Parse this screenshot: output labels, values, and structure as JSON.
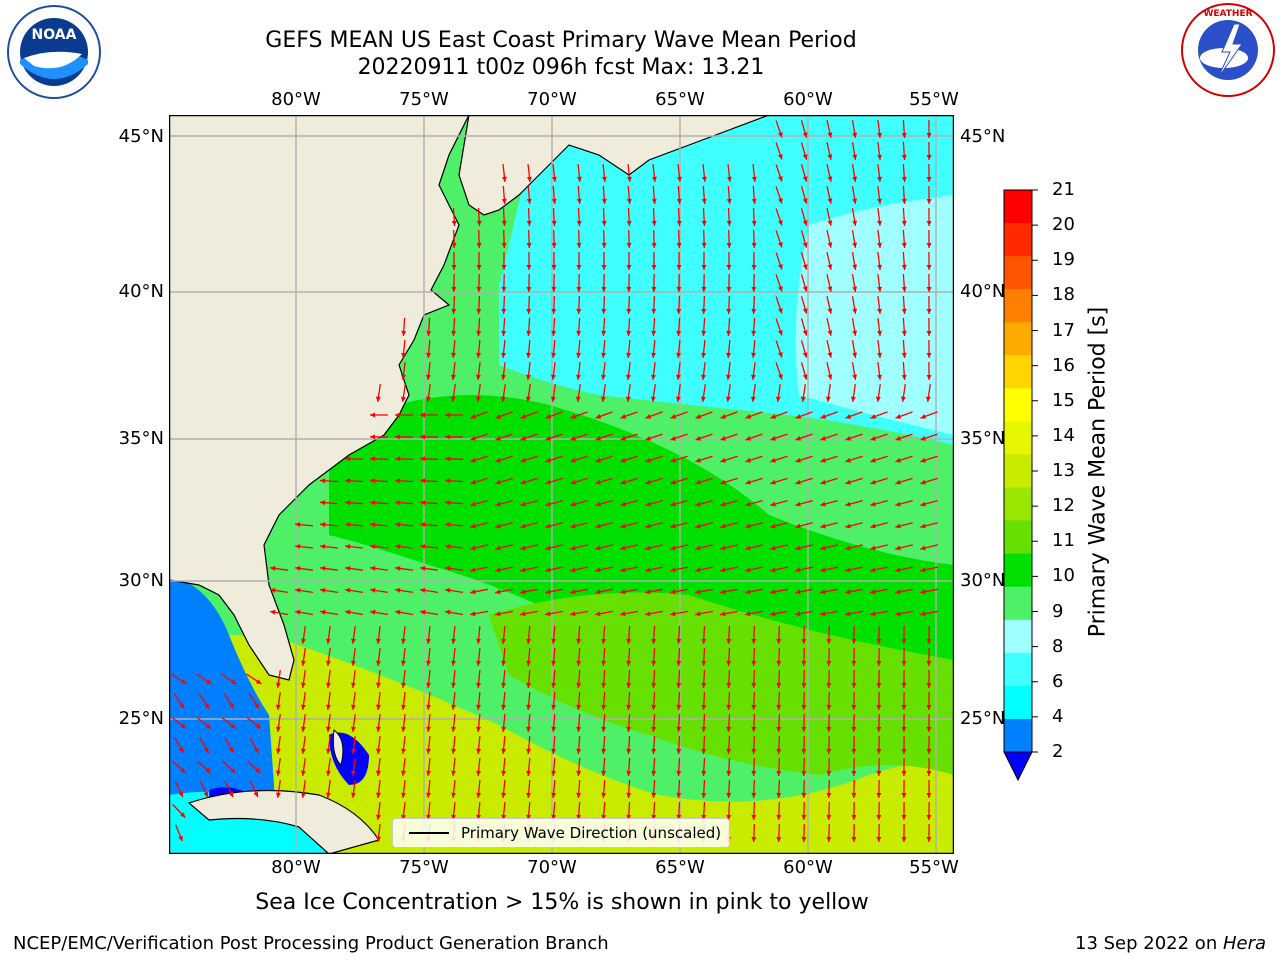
{
  "title": {
    "line1": "GEFS MEAN US East Coast Primary Wave Mean Period",
    "line2": "20220911 t00z 096h fcst   Max: 13.21"
  },
  "map": {
    "lon_ticks": [
      "80°W",
      "75°W",
      "70°W",
      "65°W",
      "60°W",
      "55°W"
    ],
    "lat_ticks": [
      "45°N",
      "40°N",
      "35°N",
      "30°N",
      "25°N"
    ],
    "extent": {
      "lon": [
        -85,
        -55
      ],
      "lat": [
        20.5,
        46
      ]
    },
    "legend_label": "Primary Wave Direction (unscaled)",
    "arrow_color": "#ff0000"
  },
  "colorbar": {
    "label": "Primary Wave Mean Period [s]",
    "ticks": [
      "21",
      "20",
      "19",
      "18",
      "17",
      "16",
      "15",
      "14",
      "13",
      "12",
      "11",
      "10",
      "9",
      "8",
      "6",
      "4",
      "2"
    ],
    "colors": [
      "#ff0000",
      "#ff2a00",
      "#ff5500",
      "#ff8000",
      "#ffaa00",
      "#ffd400",
      "#ffff00",
      "#e6f500",
      "#c8eb00",
      "#99e600",
      "#66e000",
      "#00e000",
      "#4df066",
      "#a0ffff",
      "#40ffff",
      "#00ffff",
      "#0080ff"
    ],
    "extend_color": "#0000ff"
  },
  "note": "Sea Ice Concentration > 15% is shown in pink to yellow",
  "footer": {
    "left": "NCEP/EMC/Verification Post Processing Product Generation Branch",
    "right_date": "13 Sep 2022 on ",
    "right_host": "Hera"
  },
  "logos": {
    "noaa": "NOAA",
    "nws": "NATIONAL WEATHER SERVICE"
  }
}
